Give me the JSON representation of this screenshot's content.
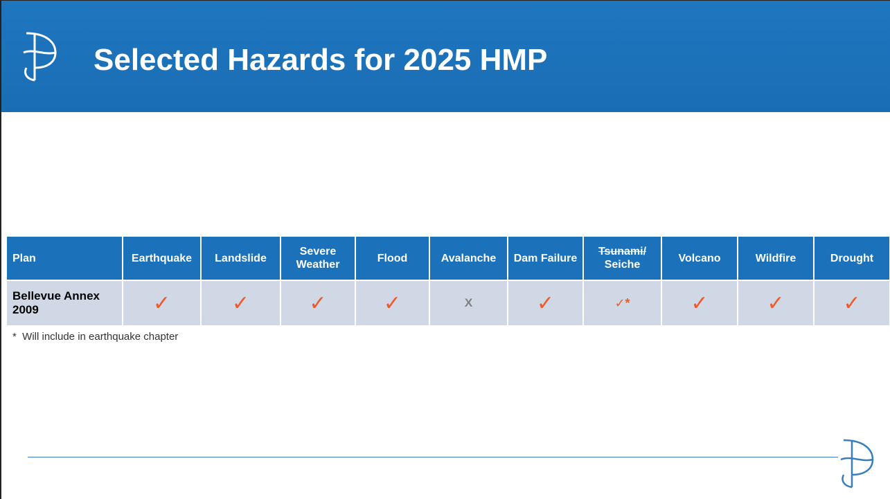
{
  "header": {
    "title": "Selected Hazards for 2025 HMP"
  },
  "table": {
    "columns": [
      "Plan",
      "Earthquake",
      "Landslide",
      "Severe Weather",
      "Flood",
      "Avalanche",
      "Dam Failure",
      {
        "struck": "Tsunami/",
        "text": "Seiche"
      },
      "Volcano",
      "Wildfire",
      "Drought"
    ],
    "rows": [
      [
        "Bellevue Annex 2009",
        "✓",
        "✓",
        "✓",
        "✓",
        "X",
        "✓",
        "✓*",
        "✓",
        "✓",
        "✓"
      ]
    ]
  },
  "footnote": "*  Will include in earthquake chapter"
}
